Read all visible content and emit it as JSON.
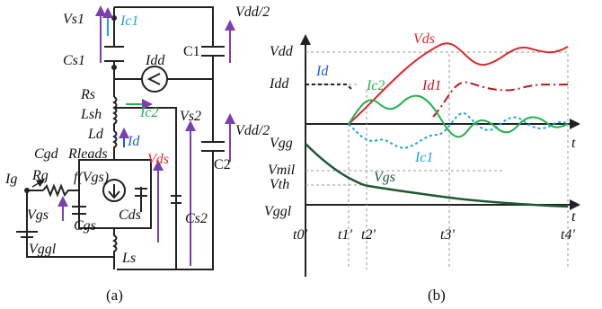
{
  "circuit": {
    "labels": {
      "vs1": "Vs1",
      "ic1": "Ic1",
      "cs1": "Cs1",
      "vdd2_top": "Vdd/2",
      "c1": "C1",
      "idd": "Idd",
      "rs": "Rs",
      "lsh": "Lsh",
      "ld": "Ld",
      "ic2": "Ic2",
      "vs2": "Vs2",
      "vdd2_bot": "Vdd/2",
      "c2": "C2",
      "id": "Id",
      "cgd": "Cgd",
      "rleads": "Rleads",
      "f_vgs": "f(Vgs)",
      "vds": "Vds",
      "ig": "Ig",
      "rg": "Rg",
      "vgs": "Vgs",
      "cgs": "Cgs",
      "cds": "Cds",
      "cs2": "Cs2",
      "vggl": "Vggl",
      "ls": "Ls"
    },
    "caption": "(a)"
  },
  "waveform": {
    "y_labels": {
      "vdd": "Vdd",
      "idd": "Idd",
      "vgg": "Vgg",
      "vmil": "Vmil",
      "vth": "Vth",
      "vggl": "Vggl"
    },
    "x_labels": {
      "t_top": "t",
      "t_bottom": "t",
      "t0": "t0'",
      "t1": "t1'",
      "t2": "t2'",
      "t3": "t3'",
      "t4": "t4'"
    },
    "curve_labels": {
      "vds": "Vds",
      "id": "Id",
      "ic2": "Ic2",
      "id1": "Id1",
      "ic1": "Ic1",
      "vgs": "Vgs"
    },
    "caption": "(b)",
    "colors": {
      "vds": "#e0262b",
      "id1": "#c0141c",
      "id": "#1f5ad6",
      "ic1": "#19a3e0",
      "ic2": "#22b14c",
      "vgs": "#1c5a33",
      "arrows": "#7b3fb0"
    }
  }
}
